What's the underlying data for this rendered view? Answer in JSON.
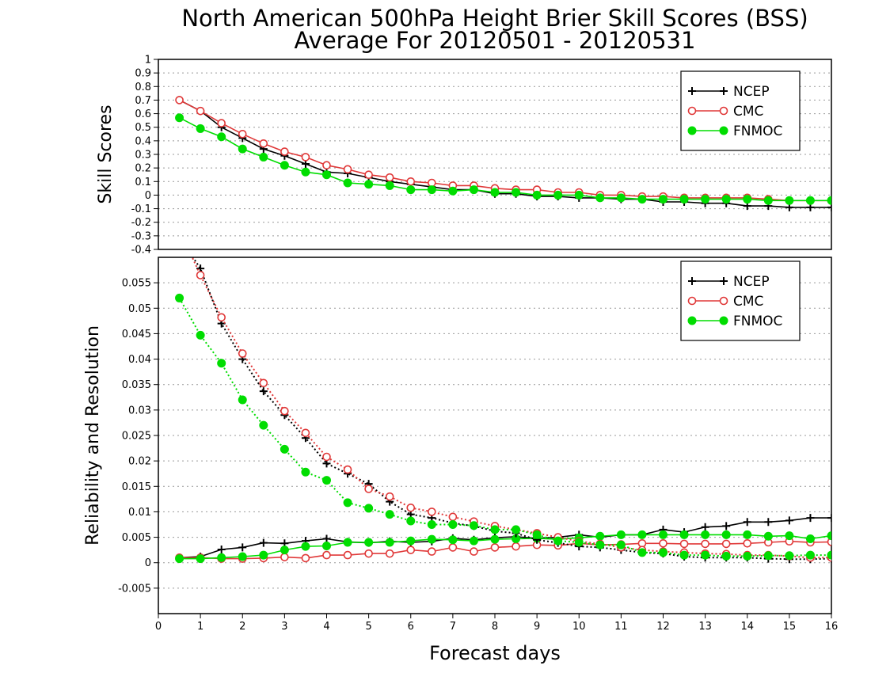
{
  "chart_data": {
    "title": "North American 500hPa Height Brier Skill Scores (BSS)",
    "subtitle": "Average For 20120501 - 20120531",
    "xlabel": "Forecast days",
    "xlim": [
      0,
      16
    ],
    "xticks": [
      "0",
      "1",
      "2",
      "3",
      "4",
      "5",
      "6",
      "7",
      "8",
      "9",
      "10",
      "11",
      "12",
      "13",
      "14",
      "15",
      "16"
    ],
    "legend_position": "top-right",
    "colors": {
      "NCEP": "#000000",
      "CMC": "#e03838",
      "FNMOC": "#00dd00"
    },
    "panels": [
      {
        "type": "line",
        "ylabel": "Skill Scores",
        "ylim": [
          -0.4,
          1
        ],
        "yticks": [
          "-0.4",
          "-0.3",
          "-0.2",
          "-0.1",
          "0",
          "0.1",
          "0.2",
          "0.3",
          "0.4",
          "0.5",
          "0.6",
          "0.7",
          "0.8",
          "0.9",
          "1"
        ],
        "grid": true,
        "legend": [
          "NCEP",
          "CMC",
          "FNMOC"
        ],
        "x": [
          0.5,
          1,
          1.5,
          2,
          2.5,
          3,
          3.5,
          4,
          4.5,
          5,
          5.5,
          6,
          6.5,
          7,
          7.5,
          8,
          8.5,
          9,
          9.5,
          10,
          10.5,
          11,
          11.5,
          12,
          12.5,
          13,
          13.5,
          14,
          14.5,
          15,
          15.5,
          16
        ],
        "series": [
          {
            "name": "NCEP",
            "values": [
              0.7,
              0.62,
              0.5,
              0.42,
              0.34,
              0.29,
              0.23,
              0.17,
              0.16,
              0.13,
              0.1,
              0.08,
              0.06,
              0.04,
              0.04,
              0.01,
              0.01,
              -0.01,
              -0.01,
              -0.02,
              -0.02,
              -0.03,
              -0.03,
              -0.05,
              -0.05,
              -0.06,
              -0.06,
              -0.08,
              -0.08,
              -0.09,
              -0.09,
              -0.09
            ]
          },
          {
            "name": "CMC",
            "values": [
              0.7,
              0.62,
              0.53,
              0.45,
              0.38,
              0.32,
              0.28,
              0.22,
              0.19,
              0.15,
              0.13,
              0.1,
              0.09,
              0.07,
              0.07,
              0.05,
              0.04,
              0.04,
              0.02,
              0.02,
              0.0,
              0.0,
              -0.01,
              -0.01,
              -0.02,
              -0.02,
              -0.02,
              -0.02,
              -0.03,
              -0.04,
              -0.04,
              -0.04
            ]
          },
          {
            "name": "FNMOC",
            "values": [
              0.57,
              0.49,
              0.43,
              0.34,
              0.28,
              0.22,
              0.17,
              0.15,
              0.09,
              0.08,
              0.07,
              0.04,
              0.04,
              0.03,
              0.04,
              0.02,
              0.02,
              0.0,
              0.0,
              0.0,
              -0.02,
              -0.02,
              -0.03,
              -0.03,
              -0.03,
              -0.03,
              -0.03,
              -0.03,
              -0.04,
              -0.04,
              -0.04,
              -0.04
            ]
          }
        ]
      },
      {
        "type": "line",
        "ylabel": "Reliability and Resolution",
        "ylim": [
          -0.01,
          0.06
        ],
        "yticks": [
          "-0.005",
          "0",
          "0.005",
          "0.01",
          "0.015",
          "0.02",
          "0.025",
          "0.03",
          "0.035",
          "0.04",
          "0.045",
          "0.05",
          "0.055"
        ],
        "grid": true,
        "legend": [
          "NCEP",
          "CMC",
          "FNMOC"
        ],
        "x": [
          0.5,
          1,
          1.5,
          2,
          2.5,
          3,
          3.5,
          4,
          4.5,
          5,
          5.5,
          6,
          6.5,
          7,
          7.5,
          8,
          8.5,
          9,
          9.5,
          10,
          10.5,
          11,
          11.5,
          12,
          12.5,
          13,
          13.5,
          14,
          14.5,
          15,
          15.5,
          16
        ],
        "series": [
          {
            "name": "NCEP",
            "style": "solid",
            "values": [
              0.001,
              0.0012,
              0.0026,
              0.003,
              0.0039,
              0.0038,
              0.0043,
              0.0047,
              0.0041,
              0.0039,
              0.0042,
              0.004,
              0.0042,
              0.0048,
              0.0045,
              0.0049,
              0.0051,
              0.0048,
              0.005,
              0.0055,
              0.005,
              0.0055,
              0.0055,
              0.0065,
              0.006,
              0.007,
              0.0072,
              0.008,
              0.008,
              0.0083,
              0.0088,
              0.0088
            ]
          },
          {
            "name": "CMC",
            "style": "solid",
            "values": [
              0.001,
              0.001,
              0.0008,
              0.0008,
              0.0009,
              0.0011,
              0.0009,
              0.0015,
              0.0015,
              0.0018,
              0.0018,
              0.0025,
              0.0022,
              0.003,
              0.0022,
              0.003,
              0.0032,
              0.0035,
              0.0034,
              0.0038,
              0.0035,
              0.0036,
              0.0038,
              0.0038,
              0.0037,
              0.0037,
              0.0037,
              0.0038,
              0.004,
              0.0042,
              0.004,
              0.0041
            ]
          },
          {
            "name": "FNMOC",
            "style": "solid",
            "values": [
              0.0008,
              0.0008,
              0.001,
              0.0012,
              0.0015,
              0.0025,
              0.0032,
              0.0033,
              0.004,
              0.004,
              0.004,
              0.0043,
              0.0046,
              0.0045,
              0.0043,
              0.0046,
              0.0047,
              0.0048,
              0.0046,
              0.0049,
              0.0052,
              0.0055,
              0.0055,
              0.0055,
              0.0055,
              0.0055,
              0.0055,
              0.0055,
              0.0052,
              0.0053,
              0.0047,
              0.0053
            ]
          },
          {
            "name": "NCEP",
            "style": "dotted",
            "values": [
              0.064,
              0.0578,
              0.047,
              0.04,
              0.0337,
              0.029,
              0.0245,
              0.0195,
              0.0175,
              0.0155,
              0.012,
              0.0095,
              0.0088,
              0.0078,
              0.0072,
              0.0062,
              0.0058,
              0.0045,
              0.0039,
              0.0032,
              0.003,
              0.0025,
              0.002,
              0.0018,
              0.0012,
              0.001,
              0.001,
              0.001,
              0.0008,
              0.0007,
              0.0007,
              0.0008
            ]
          },
          {
            "name": "CMC",
            "style": "dotted",
            "values": [
              0.0655,
              0.0565,
              0.0482,
              0.0411,
              0.0353,
              0.0298,
              0.0255,
              0.0208,
              0.0183,
              0.0145,
              0.013,
              0.0108,
              0.01,
              0.009,
              0.0081,
              0.0072,
              0.0065,
              0.0058,
              0.005,
              0.0042,
              0.0037,
              0.003,
              0.0025,
              0.0022,
              0.002,
              0.0018,
              0.0017,
              0.0015,
              0.0015,
              0.0013,
              0.001,
              0.001
            ]
          },
          {
            "name": "FNMOC",
            "style": "dotted",
            "values": [
              0.052,
              0.0447,
              0.0392,
              0.032,
              0.027,
              0.0223,
              0.0178,
              0.0162,
              0.0118,
              0.0107,
              0.0095,
              0.0082,
              0.0075,
              0.0075,
              0.0073,
              0.0065,
              0.0065,
              0.0055,
              0.0043,
              0.004,
              0.0035,
              0.0035,
              0.002,
              0.002,
              0.0015,
              0.0015,
              0.0013,
              0.0013,
              0.0014,
              0.0014,
              0.0015,
              0.0015
            ]
          }
        ]
      }
    ]
  }
}
